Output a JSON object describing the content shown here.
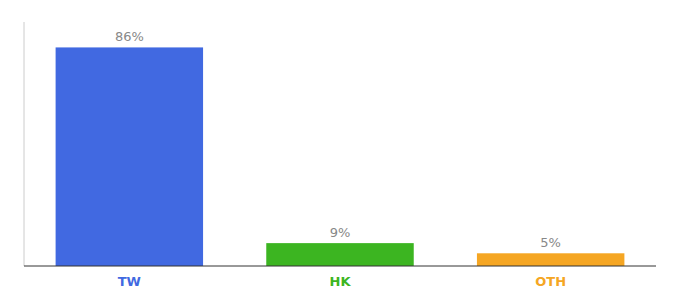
{
  "chart_data": {
    "type": "bar",
    "categories": [
      "TW",
      "HK",
      "OTH"
    ],
    "values": [
      86,
      9,
      5
    ],
    "value_labels": [
      "86%",
      "9%",
      "5%"
    ],
    "colors": [
      "#4169e1",
      "#3cb521",
      "#f5a623"
    ],
    "ylim": [
      0,
      96
    ],
    "data_labels": true,
    "tick_labels": "x"
  }
}
